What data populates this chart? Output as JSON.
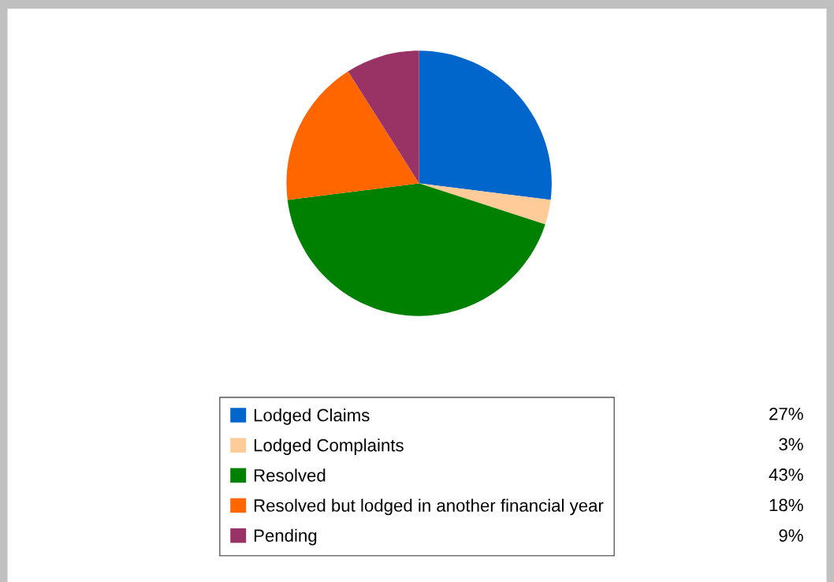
{
  "chart_data": {
    "type": "pie",
    "categories": [
      "Lodged Claims",
      "Lodged Complaints",
      "Resolved",
      "Resolved but lodged in another financial year",
      "Pending"
    ],
    "values": [
      27,
      3,
      43,
      18,
      9
    ],
    "value_labels": [
      "27%",
      "3%",
      "43%",
      "18%",
      "9%"
    ],
    "colors": [
      "#0066cc",
      "#ffcc99",
      "#008000",
      "#ff6600",
      "#993366"
    ],
    "legend": "bottom"
  }
}
